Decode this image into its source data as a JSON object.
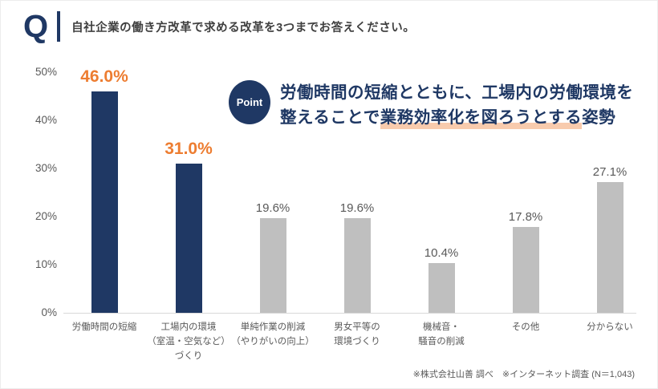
{
  "header": {
    "q_mark": "Q",
    "question": "自社企業の働き方改革で求める改革を3つまでお答えください。"
  },
  "point": {
    "badge": "Point",
    "line1": "労働時間の短縮とともに、工場内の労働環境を",
    "line2_prefix": "整えることで",
    "line2_highlight": "業務効率化を図ろうとする",
    "line2_suffix": "姿勢"
  },
  "footer": {
    "note": "※株式会社山善 調べ　※インターネット調査 (N＝1,043)"
  },
  "colors": {
    "navy": "#1F3864",
    "orange": "#ED7D31",
    "gray_bar": "#BFBFBF",
    "gray_text": "#595959",
    "peach_highlight": "#F8CBAD",
    "axis_line": "#D9D9D9"
  },
  "chart_data": {
    "type": "bar",
    "title": "自社企業の働き方改革で求める改革を3つまでお答えください。",
    "categories": [
      "労働時間の短縮",
      "工場内の環境（室温・空気など）づくり",
      "単純作業の削減（やりがいの向上）",
      "男女平等の環境づくり",
      "機械音・騒音の削減",
      "その他",
      "分からない"
    ],
    "category_lines": [
      [
        "労働時間の短縮"
      ],
      [
        "工場内の環境",
        "（室温・空気など）",
        "づくり"
      ],
      [
        "単純作業の削減",
        "（やりがいの向上）"
      ],
      [
        "男女平等の",
        "環境づくり"
      ],
      [
        "機械音・",
        "騒音の削減"
      ],
      [
        "その他"
      ],
      [
        "分からない"
      ]
    ],
    "values": [
      46.0,
      31.0,
      19.6,
      19.6,
      10.4,
      17.8,
      27.1
    ],
    "labels": [
      "46.0%",
      "31.0%",
      "19.6%",
      "19.6%",
      "10.4%",
      "17.8%",
      "27.1%"
    ],
    "emphasized": [
      true,
      true,
      false,
      false,
      false,
      false,
      false
    ],
    "bar_colors": {
      "emphasis": "#1F3864",
      "default": "#BFBFBF"
    },
    "label_colors": {
      "emphasis": "#ED7D31",
      "default": "#595959"
    },
    "xlabel": "",
    "ylabel": "",
    "ylim": [
      0,
      50
    ],
    "yticks": [
      "0%",
      "10%",
      "20%",
      "30%",
      "40%",
      "50%"
    ],
    "grid": false,
    "legend": false
  }
}
